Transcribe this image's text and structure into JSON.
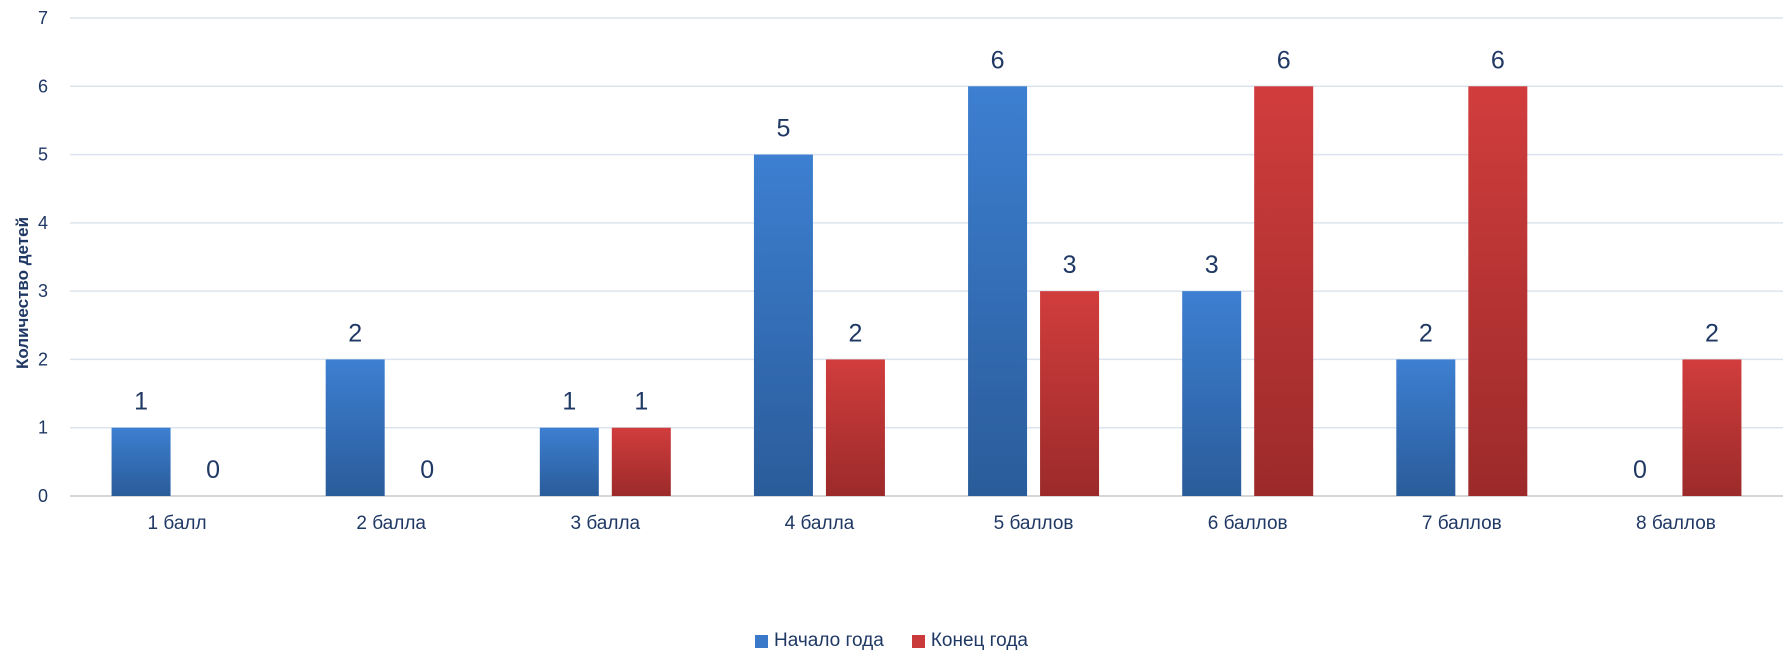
{
  "chart_data": {
    "type": "bar",
    "ylabel": "Количество детей",
    "xlabel": "",
    "ylim": [
      0,
      7
    ],
    "yticks": [
      0,
      1,
      2,
      3,
      4,
      5,
      6,
      7
    ],
    "grid": true,
    "legend_position": "bottom",
    "categories": [
      "1 балл",
      "2 балла",
      "3 балла",
      "4 балла",
      "5 баллов",
      "6 баллов",
      "7 баллов",
      "8 баллов"
    ],
    "series": [
      {
        "name": "Начало года",
        "color": "#3a78c9",
        "values": [
          1,
          2,
          1,
          5,
          6,
          3,
          2,
          0
        ]
      },
      {
        "name": "Конец года",
        "color": "#c93a3a",
        "values": [
          0,
          0,
          1,
          2,
          3,
          6,
          6,
          2
        ]
      }
    ]
  }
}
